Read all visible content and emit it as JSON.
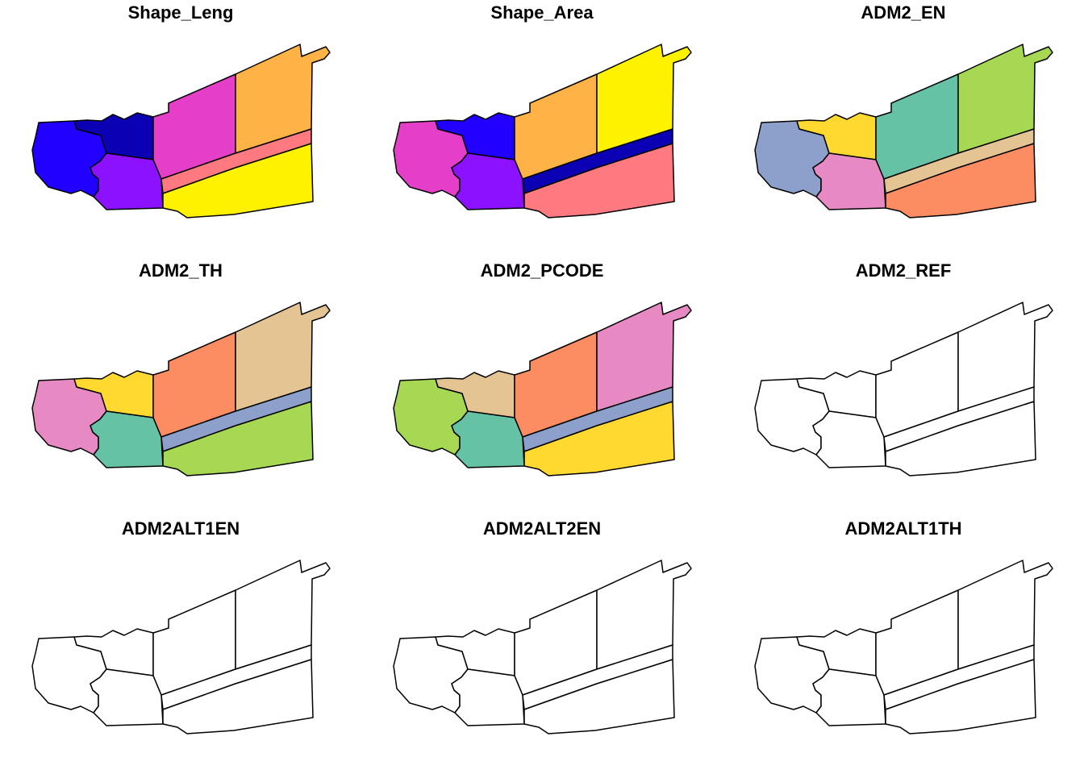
{
  "panels": [
    {
      "title": "Shape_Leng",
      "fills": [
        "#2200ff",
        "#0b00b4",
        "#8c12ff",
        "#e53fc9",
        "#ffb347",
        "#ff7a80",
        "#fff200"
      ]
    },
    {
      "title": "Shape_Area",
      "fills": [
        "#e53fc9",
        "#2200ff",
        "#8c12ff",
        "#ffb347",
        "#fff200",
        "#0b00b4",
        "#ff7a80"
      ]
    },
    {
      "title": "ADM2_EN",
      "fills": [
        "#8da0cb",
        "#ffd92f",
        "#e78ac3",
        "#66c2a5",
        "#a6d854",
        "#e5c494",
        "#fc8d62"
      ]
    },
    {
      "title": "ADM2_TH",
      "fills": [
        "#e78ac3",
        "#ffd92f",
        "#66c2a5",
        "#fc8d62",
        "#e5c494",
        "#8da0cb",
        "#a6d854"
      ]
    },
    {
      "title": "ADM2_PCODE",
      "fills": [
        "#a6d854",
        "#e5c494",
        "#66c2a5",
        "#fc8d62",
        "#e78ac3",
        "#8da0cb",
        "#ffd92f"
      ]
    },
    {
      "title": "ADM2_REF",
      "fills": [
        "#ffffff",
        "#ffffff",
        "#ffffff",
        "#ffffff",
        "#ffffff",
        "#ffffff",
        "#ffffff"
      ]
    },
    {
      "title": "ADM2ALT1EN",
      "fills": [
        "#ffffff",
        "#ffffff",
        "#ffffff",
        "#ffffff",
        "#ffffff",
        "#ffffff",
        "#ffffff"
      ]
    },
    {
      "title": "ADM2ALT2EN",
      "fills": [
        "#ffffff",
        "#ffffff",
        "#ffffff",
        "#ffffff",
        "#ffffff",
        "#ffffff",
        "#ffffff"
      ]
    },
    {
      "title": "ADM2ALT1TH",
      "fills": [
        "#ffffff",
        "#ffffff",
        "#ffffff",
        "#ffffff",
        "#ffffff",
        "#ffffff",
        "#ffffff"
      ]
    }
  ]
}
